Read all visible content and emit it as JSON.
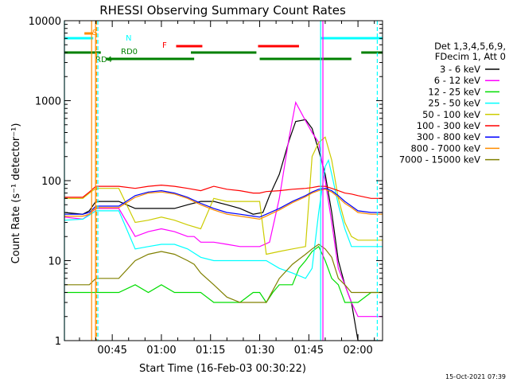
{
  "chart_data": {
    "type": "line",
    "title": "RHESSI Observing Summary Count Rates",
    "xlabel": "Start Time (16-Feb-03 00:30:22)",
    "ylabel": "Count Rate (s⁻¹ detector⁻¹)",
    "yscale": "log",
    "xlim_minutes": [
      30.4,
      127.5
    ],
    "ylim": [
      1,
      10000
    ],
    "x_ticks": [
      {
        "value": 45,
        "label": "00:45"
      },
      {
        "value": 60,
        "label": "01:00"
      },
      {
        "value": 75,
        "label": "01:15"
      },
      {
        "value": 90,
        "label": "01:30"
      },
      {
        "value": 105,
        "label": "01:45"
      },
      {
        "value": 120,
        "label": "02:00"
      }
    ],
    "y_ticks": [
      {
        "value": 1,
        "label": "1"
      },
      {
        "value": 10,
        "label": "10"
      },
      {
        "value": 100,
        "label": "100"
      },
      {
        "value": 1000,
        "label": "1000"
      },
      {
        "value": 10000,
        "label": "10000"
      }
    ],
    "legend_header": [
      "Det 1,3,4,5,6,9,",
      "FDecim 1, Att 0"
    ],
    "legend_position": "right",
    "series": [
      {
        "name": "3 - 6 keV",
        "color": "#000000",
        "x": [
          30.4,
          36,
          38,
          40,
          44,
          47,
          52,
          56,
          60,
          64,
          68,
          72,
          76,
          80,
          84,
          88,
          91,
          93,
          96,
          99,
          101,
          104,
          106,
          108,
          110,
          112,
          114,
          116,
          118,
          120,
          124,
          127.5
        ],
        "y": [
          40,
          38,
          42,
          55,
          55,
          55,
          45,
          45,
          45,
          45,
          50,
          55,
          55,
          50,
          45,
          38,
          40,
          65,
          120,
          320,
          550,
          580,
          450,
          240,
          120,
          40,
          10,
          5,
          3,
          1,
          1,
          1
        ]
      },
      {
        "name": "6 - 12 keV",
        "color": "#ff00ff",
        "x": [
          30.4,
          36,
          38,
          40,
          44,
          47,
          52,
          56,
          60,
          64,
          68,
          70,
          72,
          76,
          80,
          84,
          88,
          90,
          93,
          96,
          99,
          101,
          104,
          106,
          108,
          110,
          112,
          114,
          116,
          118,
          120,
          124,
          127.5
        ],
        "y": [
          35,
          33,
          38,
          45,
          45,
          45,
          20,
          23,
          25,
          23,
          20,
          20,
          17,
          17,
          16,
          15,
          15,
          15,
          17,
          60,
          350,
          950,
          560,
          400,
          300,
          100,
          30,
          8,
          5,
          3,
          2,
          2,
          2
        ]
      },
      {
        "name": "12 - 25 keV",
        "color": "#00dd00",
        "x": [
          30.4,
          36,
          38,
          40,
          44,
          47,
          52,
          56,
          60,
          64,
          68,
          72,
          76,
          80,
          84,
          88,
          90,
          92,
          94,
          96,
          98,
          100,
          102,
          104,
          106,
          108,
          110,
          112,
          114,
          116,
          118,
          120,
          124,
          127.5
        ],
        "y": [
          4,
          4,
          4,
          4,
          4,
          4,
          5,
          4,
          5,
          4,
          4,
          4,
          3,
          3,
          3,
          4,
          4,
          3,
          4,
          5,
          5,
          5,
          8,
          10,
          13,
          15,
          10,
          6,
          5,
          3,
          3,
          3,
          4,
          4
        ]
      },
      {
        "name": "25 - 50 keV",
        "color": "#00ffff",
        "x": [
          30.4,
          36,
          38,
          40,
          44,
          47,
          52,
          56,
          60,
          64,
          68,
          72,
          76,
          80,
          84,
          88,
          90,
          92,
          96,
          100,
          104,
          106,
          108,
          110,
          111,
          112,
          114,
          116,
          118,
          120,
          124,
          127.5
        ],
        "y": [
          32,
          33,
          37,
          42,
          42,
          42,
          14,
          15,
          16,
          16,
          14,
          11,
          10,
          10,
          10,
          10,
          10,
          10,
          8,
          7,
          6,
          8,
          40,
          150,
          180,
          120,
          50,
          25,
          15,
          15,
          15,
          15
        ]
      },
      {
        "name": "50 - 100 keV",
        "color": "#cccc00",
        "x": [
          30.4,
          36,
          38,
          40,
          44,
          47,
          52,
          56,
          60,
          64,
          68,
          72,
          76,
          80,
          84,
          88,
          90,
          92,
          96,
          100,
          104,
          106,
          108,
          110,
          112,
          114,
          116,
          118,
          120,
          124,
          127.5
        ],
        "y": [
          60,
          60,
          70,
          80,
          80,
          80,
          30,
          32,
          35,
          32,
          28,
          25,
          60,
          55,
          55,
          55,
          55,
          12,
          13,
          14,
          15,
          200,
          300,
          350,
          180,
          60,
          30,
          20,
          18,
          18,
          18
        ]
      },
      {
        "name": "100 - 300 keV",
        "color": "#ff0000",
        "x": [
          30.4,
          36,
          38,
          40,
          44,
          47,
          52,
          56,
          60,
          64,
          68,
          72,
          76,
          80,
          84,
          88,
          90,
          92,
          96,
          100,
          104,
          106,
          108,
          110,
          112,
          114,
          116,
          118,
          120,
          124,
          127.5
        ],
        "y": [
          62,
          62,
          72,
          85,
          85,
          85,
          80,
          85,
          88,
          85,
          80,
          75,
          85,
          78,
          75,
          70,
          70,
          73,
          75,
          78,
          80,
          82,
          85,
          85,
          80,
          75,
          70,
          68,
          65,
          60,
          60
        ]
      },
      {
        "name": "300 - 800 keV",
        "color": "#0000ff",
        "x": [
          30.4,
          36,
          38,
          40,
          44,
          47,
          52,
          56,
          60,
          64,
          68,
          72,
          76,
          80,
          84,
          88,
          90,
          92,
          96,
          100,
          104,
          106,
          108,
          110,
          112,
          114,
          116,
          118,
          120,
          124,
          127.5
        ],
        "y": [
          38,
          38,
          40,
          48,
          48,
          48,
          65,
          72,
          75,
          70,
          62,
          52,
          45,
          40,
          38,
          36,
          35,
          38,
          45,
          55,
          65,
          72,
          78,
          80,
          75,
          65,
          55,
          48,
          42,
          40,
          40
        ]
      },
      {
        "name": "800 - 7000 keV",
        "color": "#ff8c00",
        "x": [
          30.4,
          36,
          38,
          40,
          44,
          47,
          52,
          56,
          60,
          64,
          68,
          72,
          76,
          80,
          84,
          88,
          90,
          92,
          96,
          100,
          104,
          106,
          108,
          110,
          112,
          114,
          116,
          118,
          120,
          124,
          127.5
        ],
        "y": [
          36,
          36,
          38,
          46,
          46,
          46,
          62,
          70,
          72,
          68,
          60,
          50,
          43,
          38,
          36,
          34,
          33,
          36,
          43,
          53,
          63,
          70,
          75,
          78,
          72,
          62,
          52,
          46,
          40,
          38,
          38
        ]
      },
      {
        "name": "7000 - 15000 keV",
        "color": "#808000",
        "x": [
          30.4,
          36,
          38,
          40,
          44,
          47,
          52,
          56,
          60,
          64,
          68,
          70,
          72,
          76,
          80,
          84,
          88,
          90,
          92,
          96,
          100,
          104,
          106,
          108,
          110,
          112,
          114,
          116,
          118,
          120,
          124,
          127.5
        ],
        "y": [
          5,
          5,
          5,
          6,
          6,
          6,
          10,
          12,
          13,
          12,
          10,
          9,
          7,
          5,
          3.5,
          3,
          3,
          3,
          3,
          6,
          9,
          12,
          14,
          16,
          14,
          11,
          6,
          5,
          4,
          4,
          4,
          4
        ]
      }
    ],
    "attenuator_flags": [
      {
        "label": "S",
        "color": "#ff8c00",
        "segments": [
          [
            36.5,
            39.2
          ]
        ]
      },
      {
        "label": "N",
        "color": "#00ffff",
        "segments": [
          [
            30.4,
            39.2
          ],
          [
            108.5,
            127.5
          ]
        ]
      },
      {
        "label": "F",
        "color": "#ff0000",
        "segments": [
          [
            64.5,
            72.5
          ],
          [
            89.5,
            102
          ]
        ]
      },
      {
        "label": "RD0",
        "color": "#008000",
        "segments": [
          [
            30.4,
            41.5
          ],
          [
            69,
            89
          ],
          [
            121,
            127.5
          ]
        ]
      },
      {
        "label": "RD4",
        "color": "#008000",
        "segments": [
          [
            43,
            70
          ],
          [
            90,
            118
          ]
        ]
      }
    ],
    "vertical_markers": [
      {
        "x": 30.4,
        "color": "#00ffff",
        "style": "solid"
      },
      {
        "x": 38.7,
        "color": "#ff8c00",
        "style": "solid"
      },
      {
        "x": 39.9,
        "color": "#ff8c00",
        "style": "solid"
      },
      {
        "x": 40.2,
        "color": "#ff8c00",
        "style": "dashed"
      },
      {
        "x": 40.6,
        "color": "#00ffff",
        "style": "dashed"
      },
      {
        "x": 108.6,
        "color": "#00ffff",
        "style": "solid"
      },
      {
        "x": 109.3,
        "color": "#ff00ff",
        "style": "solid"
      },
      {
        "x": 125.9,
        "color": "#00ffff",
        "style": "dashed"
      }
    ],
    "timestamp": "15-Oct-2021 07:39"
  }
}
